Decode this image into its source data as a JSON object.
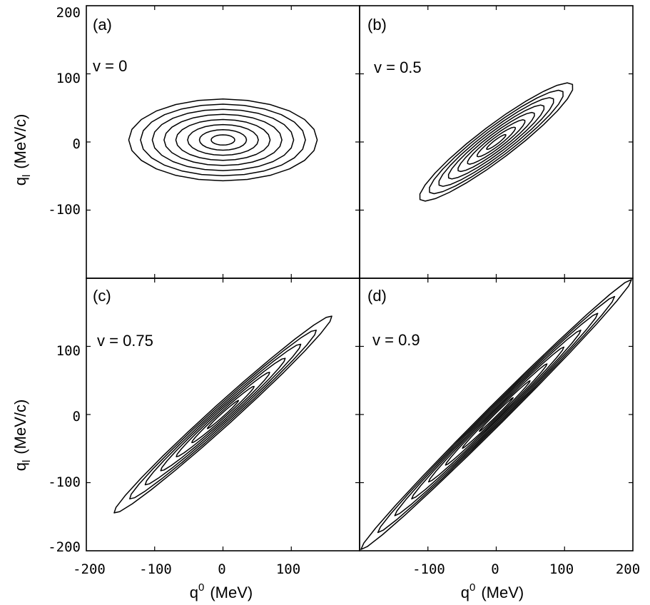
{
  "chart_data": [
    {
      "type": "contour",
      "panel_label": "(a)",
      "annotation": "v = 0",
      "v": 0,
      "x_range": [
        -200,
        200
      ],
      "y_range": [
        -200,
        200
      ],
      "yticks": [
        "200",
        "100",
        "0",
        "-100"
      ],
      "xticks": [],
      "contour_levels": 8,
      "center": [
        0,
        3
      ],
      "outer_half_width": 138,
      "outer_half_height": 60,
      "ylabel": "q",
      "ylabel_sub": "l",
      "ylabel_unit": "(MeV/c)"
    },
    {
      "type": "contour",
      "panel_label": "(b)",
      "annotation": "v = 0.5",
      "v": 0.5,
      "x_range": [
        -200,
        200
      ],
      "y_range": [
        -200,
        200
      ],
      "yticks": [],
      "xticks": [],
      "contour_levels": 8,
      "center": [
        0,
        0
      ],
      "outer_half_width": 140,
      "outer_half_height": 25
    },
    {
      "type": "contour",
      "panel_label": "(c)",
      "annotation": "v = 0.75",
      "v": 0.75,
      "x_range": [
        -200,
        200
      ],
      "y_range": [
        -200,
        200
      ],
      "yticks": [
        "100",
        "0",
        "-100",
        "-200"
      ],
      "xticks": [
        "-200",
        "-100",
        "0",
        "100"
      ],
      "contour_levels": 7,
      "center": [
        0,
        0
      ],
      "outer_half_width": 215,
      "outer_half_height": 16,
      "ylabel": "q",
      "ylabel_sub": "l",
      "ylabel_unit": "(MeV/c)",
      "xlabel": "q",
      "xlabel_sup": "0",
      "xlabel_unit": "(MeV)"
    },
    {
      "type": "contour",
      "panel_label": "(d)",
      "annotation": "v = 0.9",
      "v": 0.9,
      "x_range": [
        -200,
        200
      ],
      "y_range": [
        -200,
        200
      ],
      "yticks": [],
      "xticks": [
        "-100",
        "0",
        "100",
        "200"
      ],
      "contour_levels": 8,
      "center": [
        0,
        0
      ],
      "outer_half_width": 280,
      "outer_half_height": 14,
      "xlabel": "q",
      "xlabel_sup": "0",
      "xlabel_unit": "(MeV)"
    }
  ]
}
